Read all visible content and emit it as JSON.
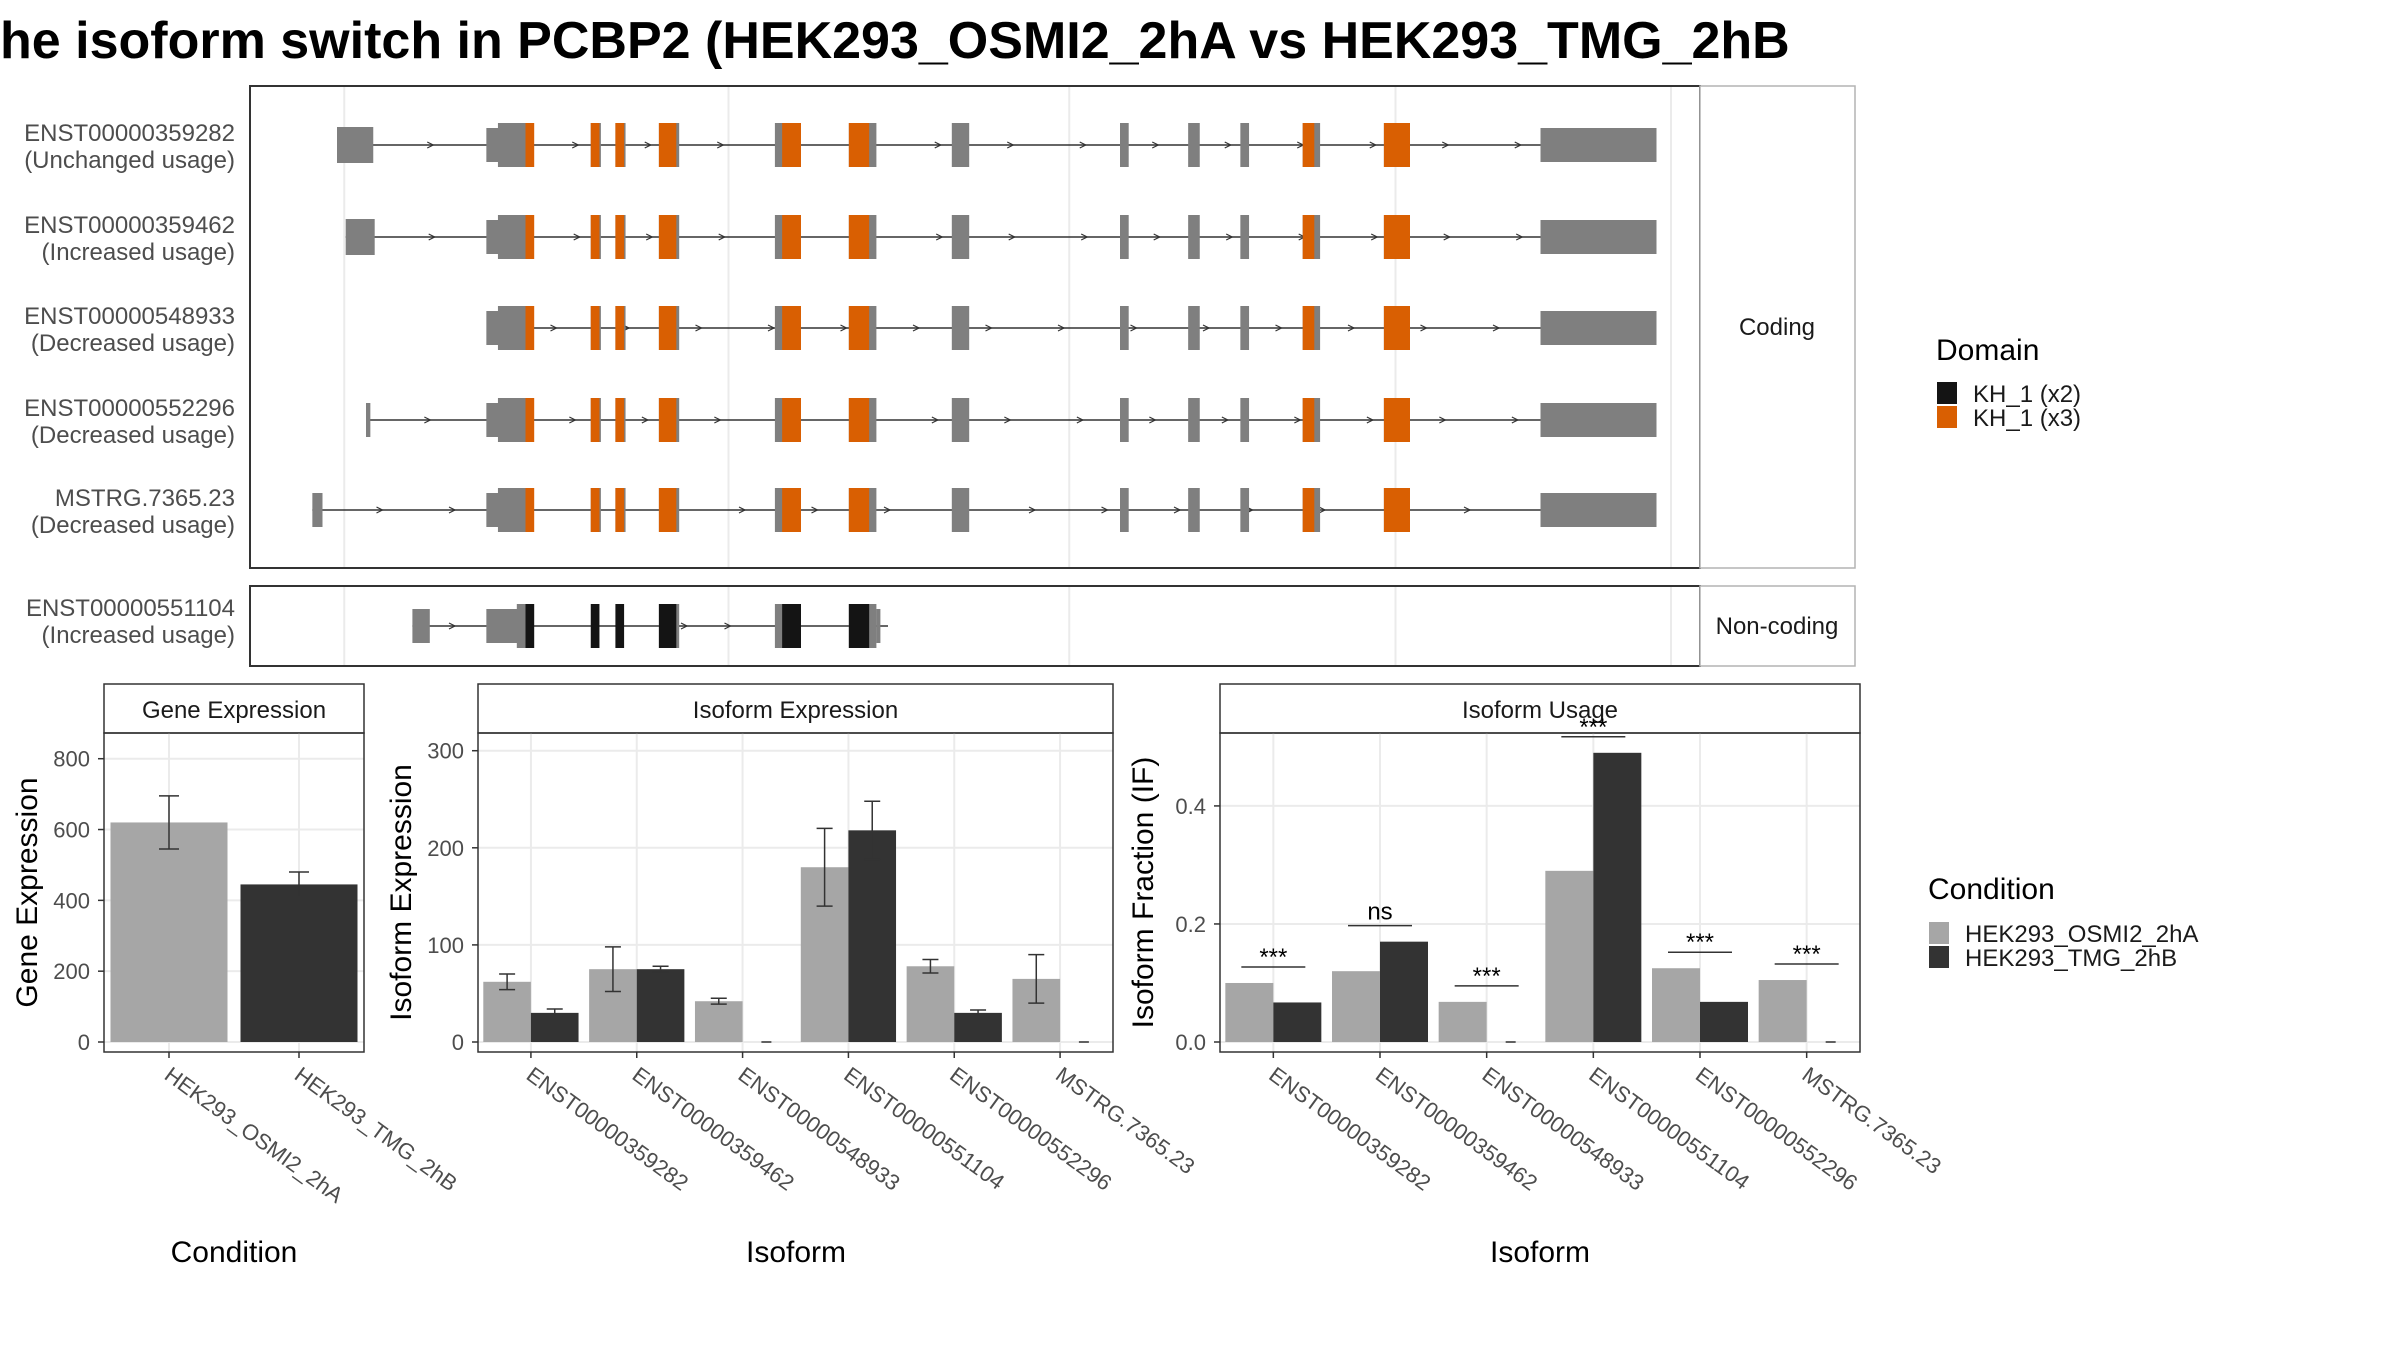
{
  "title": "he isoform switch in PCBP2 (HEK293_OSMI2_2hA vs HEK293_TMG_2hB",
  "colors": {
    "exon": "#7f7f7f",
    "domain_x2": "#141414",
    "domain_x3": "#d95f02",
    "cond_a": "#a6a6a6",
    "cond_b": "#333333",
    "strip_bg": "#ffffff",
    "grid": "#ebebeb",
    "panel_border": "#333333"
  },
  "structure": {
    "coding_label": "Coding",
    "noncoding_label": "Non-coding",
    "legend_title": "Domain",
    "legend_items": [
      {
        "label": "KH_1 (x2)",
        "color": "#141414"
      },
      {
        "label": "KH_1 (x3)",
        "color": "#d95f02"
      }
    ],
    "coding_transcripts": [
      {
        "id": "ENST00000359282",
        "status": "(Unchanged usage)",
        "first_exon": [
          0.06,
          0.085
        ]
      },
      {
        "id": "ENST00000359462",
        "status": "(Increased usage)",
        "first_exon": [
          0.066,
          0.086
        ]
      },
      {
        "id": "ENST00000548933",
        "status": "(Decreased usage)",
        "first_exon": null
      },
      {
        "id": "ENST00000552296",
        "status": "(Decreased usage)",
        "first_exon": [
          0.08,
          0.083
        ]
      },
      {
        "id": "MSTRG.7365.23",
        "status": "(Decreased usage)",
        "first_exon": [
          0.043,
          0.05
        ]
      }
    ],
    "noncoding_transcripts": [
      {
        "id": "ENST00000551104",
        "status": "(Increased usage)"
      }
    ]
  },
  "chart_data": [
    {
      "type": "bar",
      "strip": "Gene Expression",
      "xlabel": "Condition",
      "ylabel": "Gene Expression",
      "ylim": [
        0,
        850
      ],
      "yticks": [
        0,
        200,
        400,
        600,
        800
      ],
      "categories": [
        "HEK293_OSMI2_2hA",
        "HEK293_TMG_2hB"
      ],
      "values": [
        620,
        445
      ],
      "errors": [
        [
          545,
          695
        ],
        [
          410,
          480
        ]
      ],
      "grid": true
    },
    {
      "type": "bar",
      "strip": "Isoform Expression",
      "xlabel": "Isoform",
      "ylabel": "Isoform Expression",
      "ylim": [
        0,
        310
      ],
      "yticks": [
        0,
        100,
        200,
        300
      ],
      "categories": [
        "ENST00000359282",
        "ENST00000359462",
        "ENST00000548933",
        "ENST00000551104",
        "ENST00000552296",
        "MSTRG.7365.23"
      ],
      "series": [
        {
          "name": "HEK293_OSMI2_2hA",
          "values": [
            62,
            75,
            42,
            180,
            78,
            65
          ],
          "errors": [
            [
              54,
              70
            ],
            [
              52,
              98
            ],
            [
              39,
              45
            ],
            [
              140,
              220
            ],
            [
              71,
              85
            ],
            [
              40,
              90
            ]
          ]
        },
        {
          "name": "HEK293_TMG_2hB",
          "values": [
            30,
            75,
            0,
            218,
            30,
            0
          ],
          "errors": [
            [
              26,
              34
            ],
            [
              72,
              78
            ],
            [
              0,
              0
            ],
            [
              188,
              248
            ],
            [
              27,
              33
            ],
            [
              0,
              0
            ]
          ]
        }
      ],
      "grid": true
    },
    {
      "type": "bar",
      "strip": "Isoform Usage",
      "xlabel": "Isoform",
      "ylabel": "Isoform Fraction (IF)",
      "ylim": [
        0,
        0.51
      ],
      "yticks": [
        0.0,
        0.2,
        0.4
      ],
      "ytick_labels": [
        "0.0",
        "0.2",
        "0.4"
      ],
      "categories": [
        "ENST00000359282",
        "ENST00000359462",
        "ENST00000548933",
        "ENST00000551104",
        "ENST00000552296",
        "MSTRG.7365.23"
      ],
      "series": [
        {
          "name": "HEK293_OSMI2_2hA",
          "values": [
            0.1,
            0.12,
            0.068,
            0.29,
            0.125,
            0.105
          ]
        },
        {
          "name": "HEK293_TMG_2hB",
          "values": [
            0.067,
            0.17,
            0.0,
            0.49,
            0.068,
            0.0
          ]
        }
      ],
      "significance": [
        "***",
        "ns",
        "***",
        "***",
        "***",
        "***"
      ],
      "grid": true
    }
  ],
  "condition_legend": {
    "title": "Condition",
    "items": [
      {
        "label": "HEK293_OSMI2_2hA",
        "color": "#a6a6a6"
      },
      {
        "label": "HEK293_TMG_2hB",
        "color": "#333333"
      }
    ]
  }
}
